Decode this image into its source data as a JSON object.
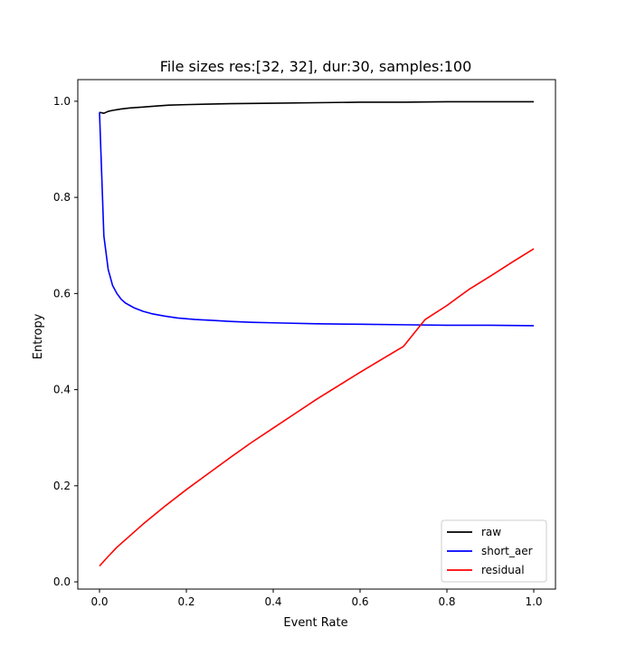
{
  "chart_data": {
    "type": "line",
    "title": "File sizes res:[32, 32], dur:30, samples:100",
    "xlabel": "Event Rate",
    "ylabel": "Entropy",
    "xlim": [
      -0.05,
      1.05
    ],
    "ylim": [
      -0.015,
      1.045
    ],
    "xticks": [
      0.0,
      0.2,
      0.4,
      0.6,
      0.8,
      1.0
    ],
    "xtick_labels": [
      "0.0",
      "0.2",
      "0.4",
      "0.6",
      "0.8",
      "1.0"
    ],
    "yticks": [
      0.0,
      0.2,
      0.4,
      0.6,
      0.8,
      1.0
    ],
    "ytick_labels": [
      "0.0",
      "0.2",
      "0.4",
      "0.6",
      "0.8",
      "1.0"
    ],
    "grid": false,
    "legend": "lower-right",
    "series": [
      {
        "name": "raw",
        "color": "#000000",
        "x": [
          0.0,
          0.01,
          0.02,
          0.03,
          0.05,
          0.07,
          0.1,
          0.13,
          0.16,
          0.2,
          0.25,
          0.3,
          0.4,
          0.5,
          0.6,
          0.7,
          0.8,
          0.9,
          1.0
        ],
        "y": [
          0.977,
          0.975,
          0.979,
          0.981,
          0.984,
          0.986,
          0.988,
          0.99,
          0.992,
          0.993,
          0.994,
          0.995,
          0.996,
          0.997,
          0.998,
          0.998,
          0.999,
          0.999,
          0.999
        ]
      },
      {
        "name": "short_aer",
        "color": "#0000ff",
        "x": [
          0.0,
          0.01,
          0.02,
          0.03,
          0.04,
          0.05,
          0.06,
          0.07,
          0.08,
          0.1,
          0.12,
          0.15,
          0.18,
          0.22,
          0.26,
          0.3,
          0.35,
          0.4,
          0.5,
          0.6,
          0.7,
          0.8,
          0.9,
          1.0
        ],
        "y": [
          0.977,
          0.72,
          0.65,
          0.617,
          0.6,
          0.588,
          0.58,
          0.575,
          0.57,
          0.563,
          0.558,
          0.553,
          0.549,
          0.546,
          0.544,
          0.542,
          0.54,
          0.539,
          0.537,
          0.536,
          0.535,
          0.534,
          0.534,
          0.533
        ]
      },
      {
        "name": "residual",
        "color": "#ff0000",
        "x": [
          0.0,
          0.02,
          0.04,
          0.06,
          0.08,
          0.1,
          0.15,
          0.2,
          0.25,
          0.3,
          0.35,
          0.4,
          0.45,
          0.5,
          0.55,
          0.6,
          0.65,
          0.7,
          0.75,
          0.8,
          0.85,
          0.9,
          0.95,
          1.0
        ],
        "y": [
          0.033,
          0.053,
          0.072,
          0.088,
          0.104,
          0.12,
          0.157,
          0.192,
          0.225,
          0.258,
          0.29,
          0.32,
          0.35,
          0.38,
          0.408,
          0.436,
          0.463,
          0.49,
          0.546,
          0.575,
          0.608,
          0.636,
          0.665,
          0.693
        ]
      }
    ]
  }
}
